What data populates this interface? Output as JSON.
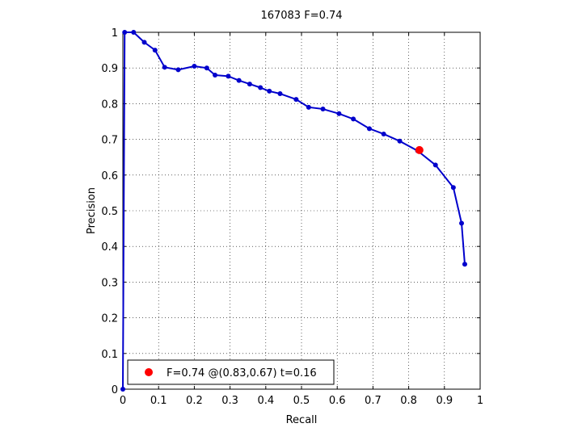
{
  "chart_data": {
    "type": "line",
    "title": "167083 F=0.74",
    "xlabel": "Recall",
    "ylabel": "Precision",
    "xlim": [
      0,
      1
    ],
    "ylim": [
      0,
      1
    ],
    "xticks": [
      "0",
      "0.1",
      "0.2",
      "0.3",
      "0.4",
      "0.5",
      "0.6",
      "0.7",
      "0.8",
      "0.9",
      "1"
    ],
    "yticks": [
      "0",
      "0.1",
      "0.2",
      "0.3",
      "0.4",
      "0.5",
      "0.6",
      "0.7",
      "0.8",
      "0.9",
      "1"
    ],
    "grid": true,
    "legend_position": "bottom-left",
    "series": [
      {
        "color": "#0000cc",
        "points": [
          [
            0.0,
            0.0
          ],
          [
            0.005,
            1.0
          ],
          [
            0.03,
            1.0
          ],
          [
            0.06,
            0.972
          ],
          [
            0.09,
            0.95
          ],
          [
            0.117,
            0.902
          ],
          [
            0.155,
            0.895
          ],
          [
            0.2,
            0.905
          ],
          [
            0.235,
            0.9
          ],
          [
            0.258,
            0.88
          ],
          [
            0.295,
            0.877
          ],
          [
            0.325,
            0.865
          ],
          [
            0.355,
            0.855
          ],
          [
            0.385,
            0.845
          ],
          [
            0.41,
            0.835
          ],
          [
            0.44,
            0.828
          ],
          [
            0.485,
            0.812
          ],
          [
            0.52,
            0.79
          ],
          [
            0.56,
            0.785
          ],
          [
            0.605,
            0.772
          ],
          [
            0.645,
            0.757
          ],
          [
            0.69,
            0.73
          ],
          [
            0.73,
            0.715
          ],
          [
            0.775,
            0.695
          ],
          [
            0.825,
            0.668
          ],
          [
            0.875,
            0.628
          ],
          [
            0.925,
            0.565
          ],
          [
            0.948,
            0.465
          ],
          [
            0.957,
            0.35
          ]
        ]
      }
    ],
    "best_point": {
      "x": 0.83,
      "y": 0.67,
      "color": "#ff0000",
      "label": "F=0.74 @(0.83,0.67) t=0.16"
    }
  }
}
